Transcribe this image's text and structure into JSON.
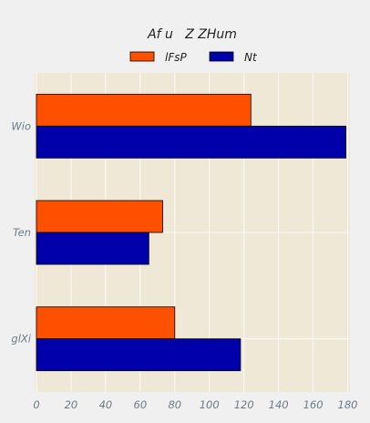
{
  "chart_data": {
    "type": "bar",
    "orientation": "horizontal",
    "title": "Af u   Z ZHum",
    "xlabel": "",
    "ylabel": "",
    "categories": [
      "Wio",
      "Ten",
      "glXi"
    ],
    "series": [
      {
        "name": "lFsP",
        "color": "#ff5000",
        "values": [
          124,
          73,
          80
        ]
      },
      {
        "name": "Nt",
        "color": "#0000aa",
        "values": [
          179,
          65,
          118
        ]
      }
    ],
    "xlim": [
      0,
      180
    ],
    "xticks": [
      0,
      20,
      40,
      60,
      80,
      100,
      120,
      140,
      160,
      180
    ],
    "grid": true,
    "legend_position": "top-center",
    "plot_background": "#efe8d7",
    "page_background": "#f0f0f0"
  }
}
